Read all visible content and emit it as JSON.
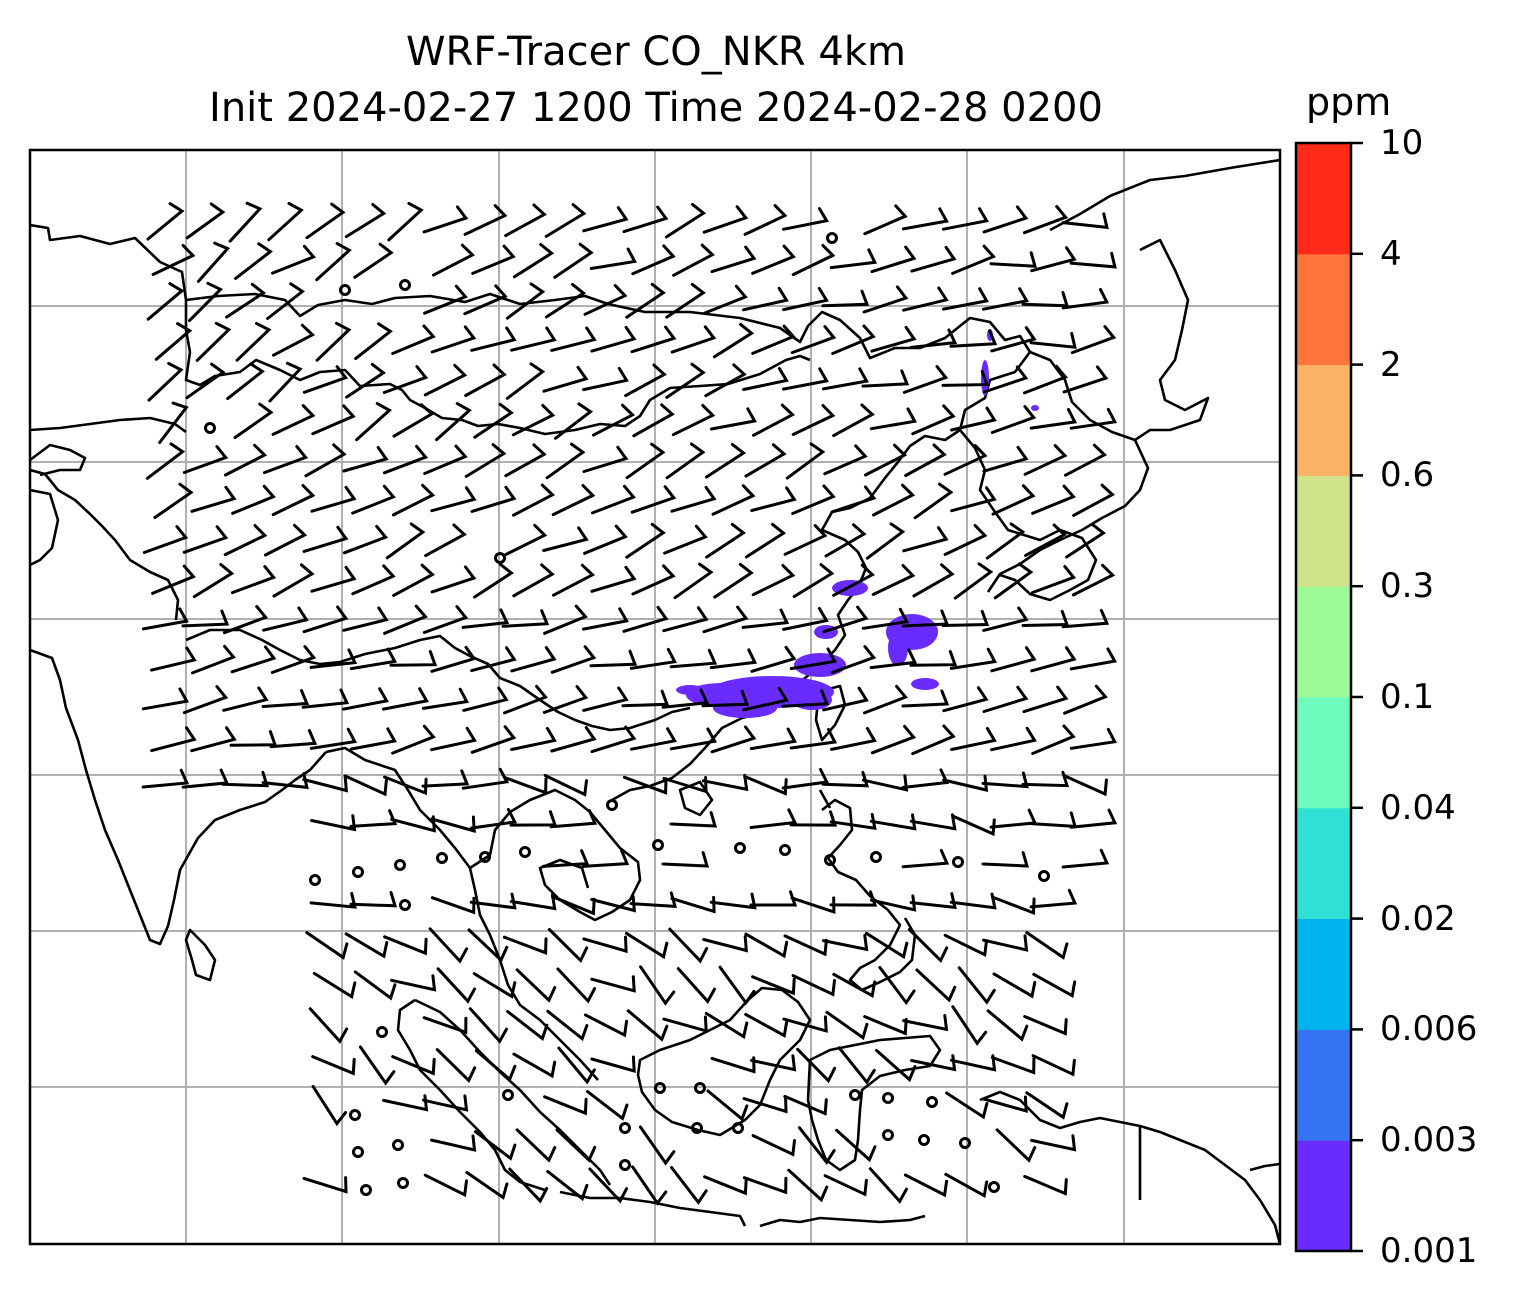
{
  "title": {
    "line1": "WRF-Tracer CO_NKR 4km",
    "line2": "Init 2024-02-27 1200 Time 2024-02-28 0200"
  },
  "map": {
    "projection": "lat-lon",
    "gridlines": true,
    "tracer_color": "#6a2bff",
    "coastline_color": "#000000",
    "grid_color": "#b0b0b0",
    "wind_symbols": "wind-barbs"
  },
  "colorbar": {
    "unit": "ppm",
    "levels": [
      "0.001",
      "0.003",
      "0.006",
      "0.02",
      "0.04",
      "0.1",
      "0.3",
      "0.6",
      "2",
      "4",
      "10"
    ],
    "colors": [
      "#6a2bff",
      "#3575f2",
      "#00b2ee",
      "#30e0d5",
      "#6cfbbd",
      "#9cfb97",
      "#cfe189",
      "#fbb264",
      "#ff743b",
      "#ff2a18"
    ]
  }
}
